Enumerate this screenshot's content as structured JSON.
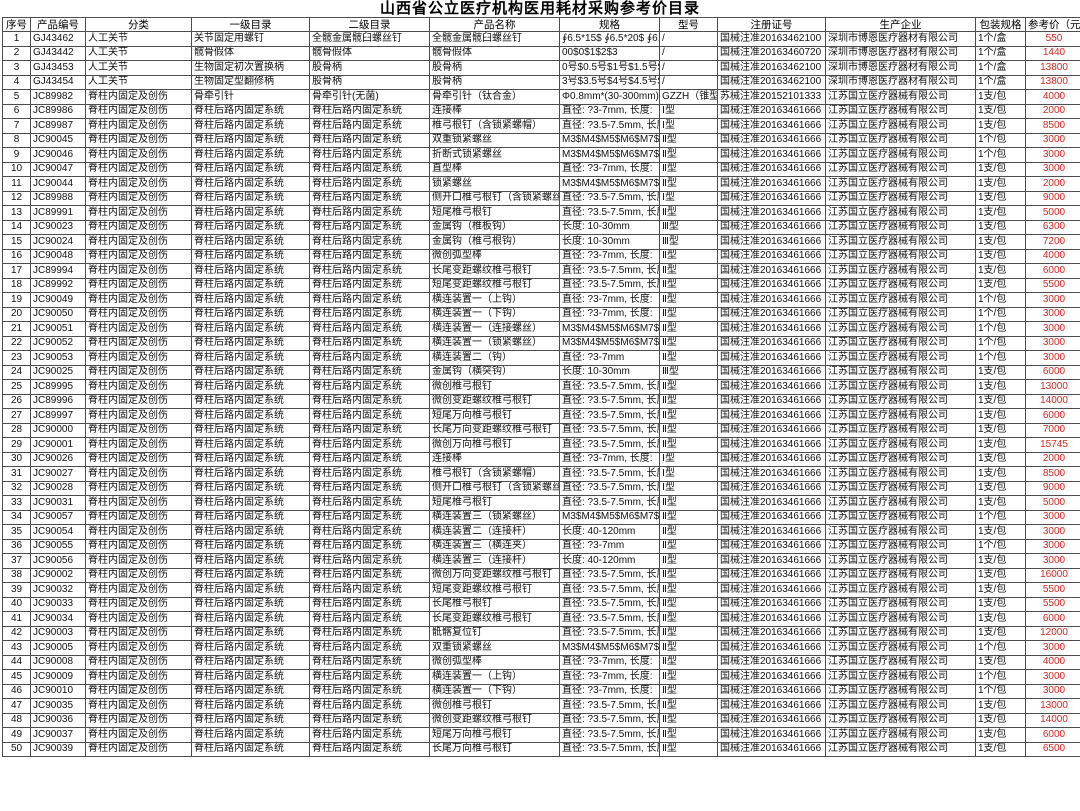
{
  "title": "山西省公立医疗机构医用耗材采购参考价目录",
  "colors": {
    "price_red": "#e0261c",
    "grid": "#4d4d4d"
  },
  "columns": [
    "序号",
    "产品编号",
    "分类",
    "一级目录",
    "二级目录",
    "产品名称",
    "规格",
    "型号",
    "注册证号",
    "生产企业",
    "包装规格",
    "参考价（元）"
  ],
  "rows": [
    [
      "1",
      "GJ43462",
      "人工关节",
      "关节固定用螺钉",
      "全髋金属髋臼螺丝钉",
      "全髋金属髋臼螺丝钉",
      "∮6.5*15$ ∮6.5*20$ ∮6.5",
      "/",
      "国械注准20163462100",
      "深圳市博恩医疗器材有限公司",
      "1个/盒",
      "550"
    ],
    [
      "2",
      "GJ43442",
      "人工关节",
      "髋骨假体",
      "髋骨假体",
      "髋骨假体",
      "00$0$1$2$3",
      "/",
      "国械注准20163460720",
      "深圳市博恩医疗器材有限公司",
      "1个/盒",
      "1440"
    ],
    [
      "3",
      "GJ43453",
      "人工关节",
      "生物固定初次置换柄",
      "股骨柄",
      "股骨柄",
      "0号$0.5号$1号$1.5号$2号",
      "/",
      "国械注准20163462100",
      "深圳市博恩医疗器材有限公司",
      "1个/盒",
      "13800"
    ],
    [
      "4",
      "GJ43454",
      "人工关节",
      "生物固定型翻修柄",
      "股骨柄",
      "股骨柄",
      "3号$3.5号$4号$4.5号$5号",
      "/",
      "国械注准20163462100",
      "深圳市博恩医疗器材有限公司",
      "1个/盒",
      "13800"
    ],
    [
      "5",
      "JC89982",
      "脊柱内固定及创伤",
      "骨牵引针",
      "骨牵引针(无菌)",
      "骨牵引针（钛合金）",
      "Φ0.8mm*(30-300mm)$Φ1",
      "GZZH（锥型）",
      "苏械注准20152101333",
      "江苏国立医疗器械有限公司",
      "1支/包",
      "4000"
    ],
    [
      "6",
      "JC89986",
      "脊柱内固定及创伤",
      "脊柱后路内固定系统",
      "脊柱后路内固定系统",
      "连接棒",
      "直径: ?3-7mm, 长度:",
      "Ⅰ型",
      "国械注准20163461666",
      "江苏国立医疗器械有限公司",
      "1支/包",
      "2000"
    ],
    [
      "7",
      "JC89987",
      "脊柱内固定及创伤",
      "脊柱后路内固定系统",
      "脊柱后路内固定系统",
      "椎弓根钉（含锁紧螺帽）",
      "直径: ?3.5-7.5mm, 长度",
      "Ⅰ型",
      "国械注准20163461666",
      "江苏国立医疗器械有限公司",
      "1支/包",
      "8500"
    ],
    [
      "8",
      "JC90045",
      "脊柱内固定及创伤",
      "脊柱后路内固定系统",
      "脊柱后路内固定系统",
      "双重锁紧螺丝",
      "M3$M4$M5$M6$M7$M8",
      "Ⅱ型",
      "国械注准20163461666",
      "江苏国立医疗器械有限公司",
      "1个/包",
      "3000"
    ],
    [
      "9",
      "JC90046",
      "脊柱内固定及创伤",
      "脊柱后路内固定系统",
      "脊柱后路内固定系统",
      "折断式锁紧螺丝",
      "M3$M4$M5$M6$M7$M8",
      "Ⅱ型",
      "国械注准20163461666",
      "江苏国立医疗器械有限公司",
      "1个/包",
      "3000"
    ],
    [
      "10",
      "JC90047",
      "脊柱内固定及创伤",
      "脊柱后路内固定系统",
      "脊柱后路内固定系统",
      "直型棒",
      "直径: ?3-7mm, 长度:",
      "Ⅱ型",
      "国械注准20163461666",
      "江苏国立医疗器械有限公司",
      "1支/包",
      "3000"
    ],
    [
      "11",
      "JC90044",
      "脊柱内固定及创伤",
      "脊柱后路内固定系统",
      "脊柱后路内固定系统",
      "锁紧螺丝",
      "M3$M4$M5$M6$M7$M8",
      "Ⅱ型",
      "国械注准20163461666",
      "江苏国立医疗器械有限公司",
      "1支/包",
      "2000"
    ],
    [
      "12",
      "JC89988",
      "脊柱内固定及创伤",
      "脊柱后路内固定系统",
      "脊柱后路内固定系统",
      "侧开口椎弓根钉（含锁紧螺丝",
      "直径: ?3.5-7.5mm, 长度",
      "Ⅰ型",
      "国械注准20163461666",
      "江苏国立医疗器械有限公司",
      "1支/包",
      "9000"
    ],
    [
      "13",
      "JC89991",
      "脊柱内固定及创伤",
      "脊柱后路内固定系统",
      "脊柱后路内固定系统",
      "短尾椎弓根钉",
      "直径: ?3.5-7.5mm, 长度",
      "Ⅱ型",
      "国械注准20163461666",
      "江苏国立医疗器械有限公司",
      "1支/包",
      "5000"
    ],
    [
      "14",
      "JC90023",
      "脊柱内固定及创伤",
      "脊柱后路内固定系统",
      "脊柱后路内固定系统",
      "金属钩（椎板钩）",
      "长度: 10-30mm",
      "Ⅲ型",
      "国械注准20163461666",
      "江苏国立医疗器械有限公司",
      "1支/包",
      "6300"
    ],
    [
      "15",
      "JC90024",
      "脊柱内固定及创伤",
      "脊柱后路内固定系统",
      "脊柱后路内固定系统",
      "金属钩（椎弓根钩）",
      "长度: 10-30mm",
      "Ⅲ型",
      "国械注准20163461666",
      "江苏国立医疗器械有限公司",
      "1支/包",
      "7200"
    ],
    [
      "16",
      "JC90048",
      "脊柱内固定及创伤",
      "脊柱后路内固定系统",
      "脊柱后路内固定系统",
      "微创弧型棒",
      "直径: ?3-7mm, 长度:",
      "Ⅱ型",
      "国械注准20163461666",
      "江苏国立医疗器械有限公司",
      "1支/包",
      "4000"
    ],
    [
      "17",
      "JC89994",
      "脊柱内固定及创伤",
      "脊柱后路内固定系统",
      "脊柱后路内固定系统",
      "长尾变距螺纹椎弓根钉",
      "直径: ?3.5-7.5mm, 长度",
      "Ⅱ型",
      "国械注准20163461666",
      "江苏国立医疗器械有限公司",
      "1支/包",
      "6000"
    ],
    [
      "18",
      "JC89992",
      "脊柱内固定及创伤",
      "脊柱后路内固定系统",
      "脊柱后路内固定系统",
      "短尾变距螺纹椎弓根钉",
      "直径: ?3.5-7.5mm, 长度",
      "Ⅱ型",
      "国械注准20163461666",
      "江苏国立医疗器械有限公司",
      "1支/包",
      "5500"
    ],
    [
      "19",
      "JC90049",
      "脊柱内固定及创伤",
      "脊柱后路内固定系统",
      "脊柱后路内固定系统",
      "横连装置一（上钩）",
      "直径: ?3-7mm, 长度:",
      "Ⅱ型",
      "国械注准20163461666",
      "江苏国立医疗器械有限公司",
      "1个/包",
      "3000"
    ],
    [
      "20",
      "JC90050",
      "脊柱内固定及创伤",
      "脊柱后路内固定系统",
      "脊柱后路内固定系统",
      "横连装置一（下钩）",
      "直径: ?3-7mm, 长度:",
      "Ⅱ型",
      "国械注准20163461666",
      "江苏国立医疗器械有限公司",
      "1个/包",
      "3000"
    ],
    [
      "21",
      "JC90051",
      "脊柱内固定及创伤",
      "脊柱后路内固定系统",
      "脊柱后路内固定系统",
      "横连装置一（连接螺丝）",
      "M3$M4$M5$M6$M7$M8",
      "Ⅱ型",
      "国械注准20163461666",
      "江苏国立医疗器械有限公司",
      "1个/包",
      "3000"
    ],
    [
      "22",
      "JC90052",
      "脊柱内固定及创伤",
      "脊柱后路内固定系统",
      "脊柱后路内固定系统",
      "横连装置一（锁紧螺丝）",
      "M3$M4$M5$M6$M7$M8",
      "Ⅱ型",
      "国械注准20163461666",
      "江苏国立医疗器械有限公司",
      "1个/包",
      "3000"
    ],
    [
      "23",
      "JC90053",
      "脊柱内固定及创伤",
      "脊柱后路内固定系统",
      "脊柱后路内固定系统",
      "横连装置二（钩）",
      "直径: ?3-7mm",
      "Ⅱ型",
      "国械注准20163461666",
      "江苏国立医疗器械有限公司",
      "1个/包",
      "3000"
    ],
    [
      "24",
      "JC90025",
      "脊柱内固定及创伤",
      "脊柱后路内固定系统",
      "脊柱后路内固定系统",
      "金属钩（横突钩）",
      "长度: 10-30mm",
      "Ⅲ型",
      "国械注准20163461666",
      "江苏国立医疗器械有限公司",
      "1支/包",
      "6000"
    ],
    [
      "25",
      "JC89995",
      "脊柱内固定及创伤",
      "脊柱后路内固定系统",
      "脊柱后路内固定系统",
      "微创椎弓根钉",
      "直径: ?3.5-7.5mm, 长度",
      "Ⅱ型",
      "国械注准20163461666",
      "江苏国立医疗器械有限公司",
      "1支/包",
      "13000"
    ],
    [
      "26",
      "JC89996",
      "脊柱内固定及创伤",
      "脊柱后路内固定系统",
      "脊柱后路内固定系统",
      "微创变距螺纹椎弓根钉",
      "直径: ?3.5-7.5mm, 长度",
      "Ⅱ型",
      "国械注准20163461666",
      "江苏国立医疗器械有限公司",
      "1支/包",
      "14000"
    ],
    [
      "27",
      "JC89997",
      "脊柱内固定及创伤",
      "脊柱后路内固定系统",
      "脊柱后路内固定系统",
      "短尾万向椎弓根钉",
      "直径: ?3.5-7.5mm, 长度",
      "Ⅱ型",
      "国械注准20163461666",
      "江苏国立医疗器械有限公司",
      "1支/包",
      "6000"
    ],
    [
      "28",
      "JC90000",
      "脊柱内固定及创伤",
      "脊柱后路内固定系统",
      "脊柱后路内固定系统",
      "长尾万向变距螺纹椎弓根钉",
      "直径: ?3.5-7.5mm, 长度",
      "Ⅱ型",
      "国械注准20163461666",
      "江苏国立医疗器械有限公司",
      "1支/包",
      "7000"
    ],
    [
      "29",
      "JC90001",
      "脊柱内固定及创伤",
      "脊柱后路内固定系统",
      "脊柱后路内固定系统",
      "微创万向椎弓根钉",
      "直径: ?3.5-7.5mm, 长度",
      "Ⅱ型",
      "国械注准20163461666",
      "江苏国立医疗器械有限公司",
      "1支/包",
      "15745"
    ],
    [
      "30",
      "JC90026",
      "脊柱内固定及创伤",
      "脊柱后路内固定系统",
      "脊柱后路内固定系统",
      "连接棒",
      "直径: ?3-7mm, 长度:",
      "Ⅰ型",
      "国械注准20163461666",
      "江苏国立医疗器械有限公司",
      "1支/包",
      "2000"
    ],
    [
      "31",
      "JC90027",
      "脊柱内固定及创伤",
      "脊柱后路内固定系统",
      "脊柱后路内固定系统",
      "椎弓根钉（含锁紧螺帽）",
      "直径: ?3.5-7.5mm, 长度",
      "Ⅰ型",
      "国械注准20163461666",
      "江苏国立医疗器械有限公司",
      "1支/包",
      "8500"
    ],
    [
      "32",
      "JC90028",
      "脊柱内固定及创伤",
      "脊柱后路内固定系统",
      "脊柱后路内固定系统",
      "侧开口椎弓根钉（含锁紧螺丝",
      "直径: ?3.5-7.5mm, 长度",
      "Ⅰ型",
      "国械注准20163461666",
      "江苏国立医疗器械有限公司",
      "1支/包",
      "9000"
    ],
    [
      "33",
      "JC90031",
      "脊柱内固定及创伤",
      "脊柱后路内固定系统",
      "脊柱后路内固定系统",
      "短尾椎弓根钉",
      "直径: ?3.5-7.5mm, 长度",
      "Ⅱ型",
      "国械注准20163461666",
      "江苏国立医疗器械有限公司",
      "1支/包",
      "5000"
    ],
    [
      "34",
      "JC90057",
      "脊柱内固定及创伤",
      "脊柱后路内固定系统",
      "脊柱后路内固定系统",
      "横连装置三（锁紧螺丝）",
      "M3$M4$M5$M6$M7$M8",
      "Ⅱ型",
      "国械注准20163461666",
      "江苏国立医疗器械有限公司",
      "1个/包",
      "3000"
    ],
    [
      "35",
      "JC90054",
      "脊柱内固定及创伤",
      "脊柱后路内固定系统",
      "脊柱后路内固定系统",
      "横连装置二（连接杆）",
      "长度: 40-120mm",
      "Ⅱ型",
      "国械注准20163461666",
      "江苏国立医疗器械有限公司",
      "1支/包",
      "3000"
    ],
    [
      "36",
      "JC90055",
      "脊柱内固定及创伤",
      "脊柱后路内固定系统",
      "脊柱后路内固定系统",
      "横连装置三（横连夹）",
      "直径: ?3-7mm",
      "Ⅱ型",
      "国械注准20163461666",
      "江苏国立医疗器械有限公司",
      "1个/包",
      "3000"
    ],
    [
      "37",
      "JC90056",
      "脊柱内固定及创伤",
      "脊柱后路内固定系统",
      "脊柱后路内固定系统",
      "横连装置三（连接杆）",
      "长度: 40-120mm",
      "Ⅱ型",
      "国械注准20163461666",
      "江苏国立医疗器械有限公司",
      "1支/包",
      "3000"
    ],
    [
      "38",
      "JC90002",
      "脊柱内固定及创伤",
      "脊柱后路内固定系统",
      "脊柱后路内固定系统",
      "微创万向变距螺纹椎弓根钉",
      "直径: ?3.5-7.5mm, 长度",
      "Ⅱ型",
      "国械注准20163461666",
      "江苏国立医疗器械有限公司",
      "1支/包",
      "16000"
    ],
    [
      "39",
      "JC90032",
      "脊柱内固定及创伤",
      "脊柱后路内固定系统",
      "脊柱后路内固定系统",
      "短尾变距螺纹椎弓根钉",
      "直径: ?3.5-7.5mm, 长度",
      "Ⅱ型",
      "国械注准20163461666",
      "江苏国立医疗器械有限公司",
      "1支/包",
      "5500"
    ],
    [
      "40",
      "JC90033",
      "脊柱内固定及创伤",
      "脊柱后路内固定系统",
      "脊柱后路内固定系统",
      "长尾椎弓根钉",
      "直径: ?3.5-7.5mm, 长度",
      "Ⅱ型",
      "国械注准20163461666",
      "江苏国立医疗器械有限公司",
      "1支/包",
      "5500"
    ],
    [
      "41",
      "JC90034",
      "脊柱内固定及创伤",
      "脊柱后路内固定系统",
      "脊柱后路内固定系统",
      "长尾变距螺纹椎弓根钉",
      "直径: ?3.5-7.5mm, 长度",
      "Ⅱ型",
      "国械注准20163461666",
      "江苏国立医疗器械有限公司",
      "1支/包",
      "6000"
    ],
    [
      "42",
      "JC90003",
      "脊柱内固定及创伤",
      "脊柱后路内固定系统",
      "脊柱后路内固定系统",
      "骶髂复位钉",
      "直径: ?3.5-7.5mm, 长度",
      "Ⅱ型",
      "国械注准20163461666",
      "江苏国立医疗器械有限公司",
      "1支/包",
      "12000"
    ],
    [
      "43",
      "JC90005",
      "脊柱内固定及创伤",
      "脊柱后路内固定系统",
      "脊柱后路内固定系统",
      "双重锁紧螺丝",
      "M3$M4$M5$M6$M7$M8",
      "Ⅱ型",
      "国械注准20163461666",
      "江苏国立医疗器械有限公司",
      "1个/包",
      "3000"
    ],
    [
      "44",
      "JC90008",
      "脊柱内固定及创伤",
      "脊柱后路内固定系统",
      "脊柱后路内固定系统",
      "微创弧型棒",
      "直径: ?3-7mm, 长度:",
      "Ⅱ型",
      "国械注准20163461666",
      "江苏国立医疗器械有限公司",
      "1支/包",
      "4000"
    ],
    [
      "45",
      "JC90009",
      "脊柱内固定及创伤",
      "脊柱后路内固定系统",
      "脊柱后路内固定系统",
      "横连装置一（上钩）",
      "直径: ?3-7mm, 长度:",
      "Ⅱ型",
      "国械注准20163461666",
      "江苏国立医疗器械有限公司",
      "1个/包",
      "3000"
    ],
    [
      "46",
      "JC90010",
      "脊柱内固定及创伤",
      "脊柱后路内固定系统",
      "脊柱后路内固定系统",
      "横连装置一（下钩）",
      "直径: ?3-7mm, 长度:",
      "Ⅱ型",
      "国械注准20163461666",
      "江苏国立医疗器械有限公司",
      "1个/包",
      "3000"
    ],
    [
      "47",
      "JC90035",
      "脊柱内固定及创伤",
      "脊柱后路内固定系统",
      "脊柱后路内固定系统",
      "微创椎弓根钉",
      "直径: ?3.5-7.5mm, 长度",
      "Ⅱ型",
      "国械注准20163461666",
      "江苏国立医疗器械有限公司",
      "1支/包",
      "13000"
    ],
    [
      "48",
      "JC90036",
      "脊柱内固定及创伤",
      "脊柱后路内固定系统",
      "脊柱后路内固定系统",
      "微创变距螺纹椎弓根钉",
      "直径: ?3.5-7.5mm, 长度",
      "Ⅱ型",
      "国械注准20163461666",
      "江苏国立医疗器械有限公司",
      "1支/包",
      "14000"
    ],
    [
      "49",
      "JC90037",
      "脊柱内固定及创伤",
      "脊柱后路内固定系统",
      "脊柱后路内固定系统",
      "短尾万向椎弓根钉",
      "直径: ?3.5-7.5mm, 长度",
      "Ⅱ型",
      "国械注准20163461666",
      "江苏国立医疗器械有限公司",
      "1支/包",
      "6000"
    ],
    [
      "50",
      "JC90039",
      "脊柱内固定及创伤",
      "脊柱后路内固定系统",
      "脊柱后路内固定系统",
      "长尾万向椎弓根钉",
      "直径: ?3.5-7.5mm, 长度",
      "Ⅱ型",
      "国械注准20163461666",
      "江苏国立医疗器械有限公司",
      "1支/包",
      "6500"
    ]
  ]
}
